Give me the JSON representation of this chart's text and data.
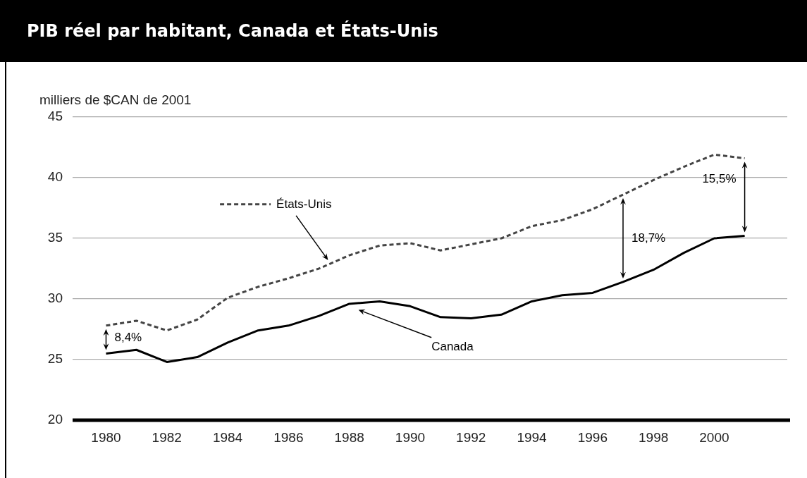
{
  "chart_data": {
    "type": "line",
    "title": "PIB réel par habitant, Canada et États-Unis",
    "ylabel": "milliers de $CAN de 2001",
    "x": [
      1980,
      1981,
      1982,
      1983,
      1984,
      1985,
      1986,
      1987,
      1988,
      1989,
      1990,
      1991,
      1992,
      1993,
      1994,
      1995,
      1996,
      1997,
      1998,
      1999,
      2000,
      2001
    ],
    "series": [
      {
        "name": "États-Unis",
        "color": "#444444",
        "line_style": "dashed",
        "values": [
          27.8,
          28.2,
          27.4,
          28.3,
          30.1,
          31.0,
          31.7,
          32.5,
          33.6,
          34.4,
          34.6,
          34.0,
          34.5,
          35.0,
          36.0,
          36.5,
          37.4,
          38.6,
          39.8,
          40.9,
          41.9,
          41.6
        ]
      },
      {
        "name": "Canada",
        "color": "#000000",
        "line_style": "solid",
        "values": [
          25.5,
          25.8,
          24.8,
          25.2,
          26.4,
          27.4,
          27.8,
          28.6,
          29.6,
          29.8,
          29.4,
          28.5,
          28.4,
          28.7,
          29.8,
          30.3,
          30.5,
          31.4,
          32.4,
          33.8,
          35.0,
          35.2
        ]
      }
    ],
    "xlim": [
      1978.9,
      2002.4
    ],
    "xticks": [
      1980,
      1982,
      1984,
      1986,
      1988,
      1990,
      1992,
      1994,
      1996,
      1998,
      2000
    ],
    "ylim": [
      20,
      45
    ],
    "yticks": [
      20,
      25,
      30,
      35,
      40,
      45
    ],
    "grid": "y",
    "legend": "top left",
    "marker": "none",
    "annotations": [
      "8,4%",
      "18,7%",
      "15,5%"
    ]
  }
}
